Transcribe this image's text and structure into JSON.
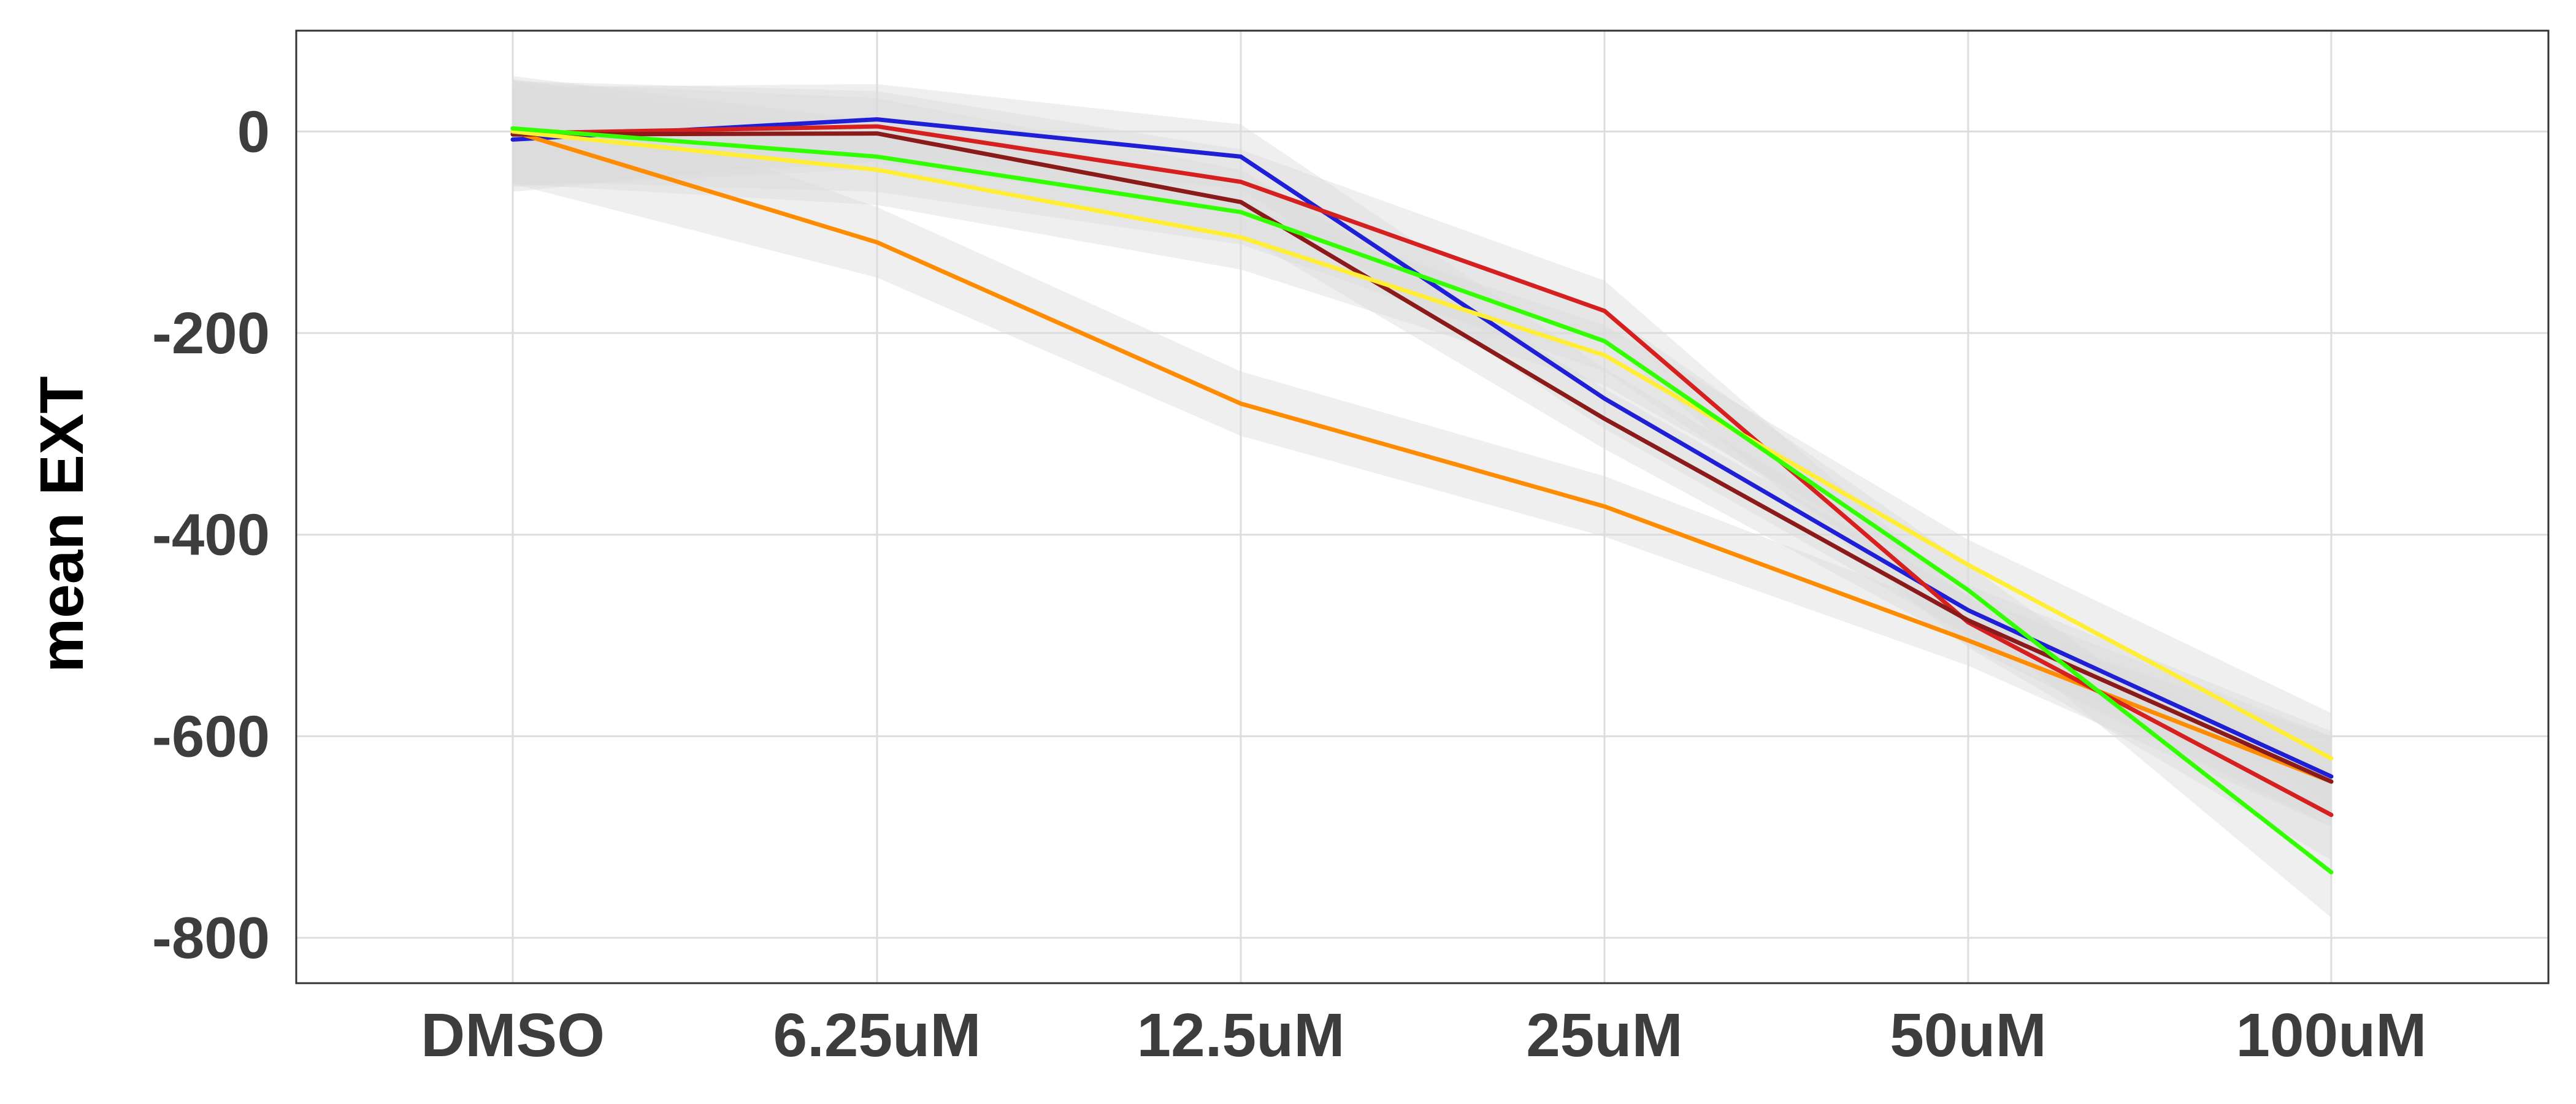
{
  "chart_data": {
    "type": "line",
    "title": "",
    "xlabel": "",
    "ylabel": "mean EXT",
    "categories": [
      "DMSO",
      "6.25uM",
      "12.5uM",
      "25uM",
      "50uM",
      "100uM"
    ],
    "ylim": [
      -845,
      100
    ],
    "yticks": [
      0,
      -200,
      -400,
      -600,
      -800
    ],
    "grid": true,
    "legend": "none",
    "ribbon_color": "#dcdcdc",
    "ribbon_halfwidth": [
      52,
      35,
      32,
      30,
      25,
      45
    ],
    "series": [
      {
        "color": "#1f1fd6",
        "values": [
          -8,
          12,
          -25,
          -265,
          -475,
          -640
        ]
      },
      {
        "color": "#ff8c00",
        "values": [
          0,
          -110,
          -270,
          -372,
          -505,
          -645
        ]
      },
      {
        "color": "#d62020",
        "values": [
          -2,
          5,
          -50,
          -178,
          -487,
          -678
        ]
      },
      {
        "color": "#8b1a1a",
        "values": [
          -3,
          -2,
          -70,
          -285,
          -485,
          -645
        ]
      },
      {
        "color": "#ffee33",
        "values": [
          0,
          -38,
          -105,
          -222,
          -430,
          -622
        ]
      },
      {
        "color": "#32ff00",
        "values": [
          3,
          -25,
          -80,
          -208,
          -455,
          -735
        ]
      }
    ]
  }
}
